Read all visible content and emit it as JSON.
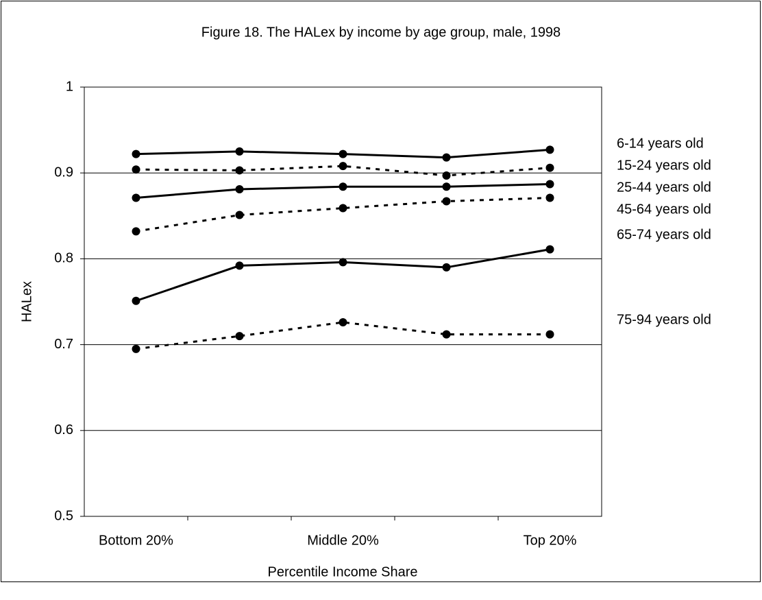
{
  "chart_data": {
    "type": "line",
    "title": "Figure 18. The HALex by income by age group, male, 1998",
    "x_label": "Percentile Income Share",
    "y_label": "HALex",
    "categories": [
      "Bottom 20%",
      null,
      "Middle 20%",
      null,
      "Top 20%"
    ],
    "series": [
      {
        "name": "6-14 years old",
        "color": "#000000",
        "line_style": "solid",
        "values": [
          0.922,
          0.925,
          0.922,
          0.918,
          0.927
        ]
      },
      {
        "name": "15-24 years old",
        "color": "#000000",
        "line_style": "dotted",
        "values": [
          0.904,
          0.903,
          0.908,
          0.897,
          0.906
        ]
      },
      {
        "name": "25-44 years old",
        "color": "#000000",
        "line_style": "solid",
        "values": [
          0.871,
          0.881,
          0.884,
          0.884,
          0.887
        ]
      },
      {
        "name": "45-64 years old",
        "color": "#000000",
        "line_style": "dotted",
        "values": [
          0.832,
          0.851,
          0.859,
          0.867,
          0.871
        ]
      },
      {
        "name": "65-74 years old",
        "color": "#000000",
        "line_style": "solid",
        "values": [
          0.751,
          0.792,
          0.796,
          0.79,
          0.811
        ]
      },
      {
        "name": "75-94 years old",
        "color": "#000000",
        "line_style": "dotted",
        "values": [
          0.695,
          0.71,
          0.726,
          0.712,
          0.712
        ]
      }
    ],
    "ylim": [
      0.5,
      1
    ],
    "yticks": [
      0.5,
      0.6,
      0.7,
      0.8,
      0.9,
      1
    ],
    "grid": true
  }
}
